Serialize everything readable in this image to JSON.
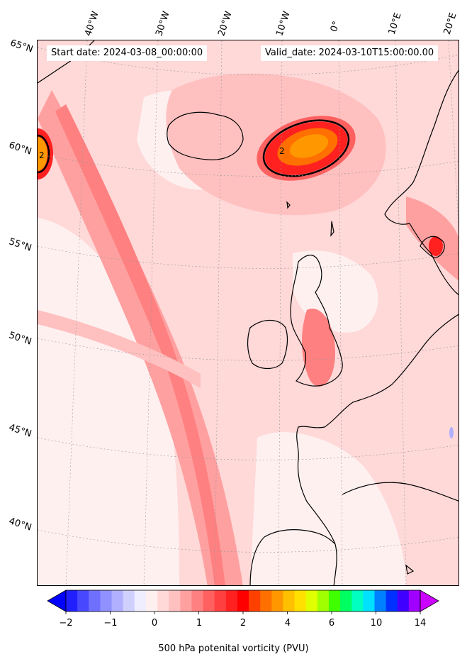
{
  "info": {
    "start_date": "Start date: 2024-03-08_00:00:00",
    "valid_date": "Valid_date: 2024-03-10T15:00:00.00"
  },
  "latitude_labels": [
    "65°N",
    "60°N",
    "55°N",
    "50°N",
    "45°N",
    "40°N"
  ],
  "longitude_labels": [
    "40°W",
    "30°W",
    "20°W",
    "10°W",
    "0°",
    "10°E",
    "20°E"
  ],
  "colorbar": {
    "label": "500 hPa potenital vorticity (PVU)",
    "ticks": [
      "−2",
      "−1",
      "0",
      "1",
      "2",
      "4",
      "6",
      "10",
      "14"
    ],
    "levels": [
      -2,
      -1.75,
      -1.5,
      -1.25,
      -1,
      -0.75,
      -0.5,
      -0.25,
      0,
      0.25,
      0.5,
      0.75,
      1,
      1.25,
      1.5,
      1.75,
      2,
      2.5,
      3,
      3.5,
      4,
      5,
      6,
      7,
      8,
      9,
      10,
      11,
      12,
      13,
      14,
      15
    ],
    "colors": [
      "#0000ff",
      "#2020ff",
      "#4848ff",
      "#7070ff",
      "#9090ff",
      "#b0b0ff",
      "#d0d0ff",
      "#eeeeff",
      "#fff0f0",
      "#ffd8d8",
      "#ffc0c0",
      "#ffa0a0",
      "#ff8080",
      "#ff6060",
      "#ff4040",
      "#ff2020",
      "#ff0000",
      "#ff4000",
      "#ff7000",
      "#ff9800",
      "#ffc000",
      "#ffe000",
      "#e0ff00",
      "#a0ff00",
      "#40ff00",
      "#00ff60",
      "#00ffc0",
      "#00e0ff",
      "#0080ff",
      "#0030ff",
      "#4000ff",
      "#a000ff",
      "#cc00ff"
    ],
    "extend": "both"
  },
  "contour_label": "2"
}
